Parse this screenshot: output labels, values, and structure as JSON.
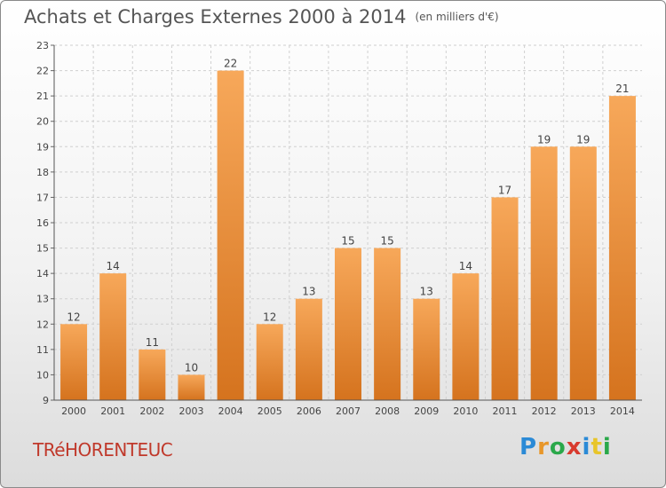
{
  "header": {
    "title": "Achats et Charges Externes 2000 à 2014",
    "unit": "(en milliers d'€)"
  },
  "footer": {
    "commune": "TRéHORENTEUC",
    "logo_letters": [
      {
        "char": "P",
        "color": "#2b8ad6"
      },
      {
        "char": "r",
        "color": "#e8972a"
      },
      {
        "char": "o",
        "color": "#2aa84a"
      },
      {
        "char": "x",
        "color": "#d83a2e"
      },
      {
        "char": "i",
        "color": "#2b8ad6"
      },
      {
        "char": "t",
        "color": "#e8c52a"
      },
      {
        "char": "i",
        "color": "#2aa84a"
      }
    ]
  },
  "chart_data": {
    "type": "bar",
    "categories": [
      "2000",
      "2001",
      "2002",
      "2003",
      "2004",
      "2005",
      "2006",
      "2007",
      "2008",
      "2009",
      "2010",
      "2011",
      "2012",
      "2013",
      "2014"
    ],
    "values": [
      12,
      14,
      11,
      10,
      22,
      12,
      13,
      15,
      15,
      13,
      14,
      17,
      19,
      19,
      21
    ],
    "ylim": [
      9,
      23
    ],
    "yticks": [
      9,
      10,
      11,
      12,
      13,
      14,
      15,
      16,
      17,
      18,
      19,
      20,
      21,
      22,
      23
    ],
    "grid": true,
    "bar_color_top": "#f7a85a",
    "bar_color_bottom": "#d5731e",
    "title": "Achats et Charges Externes 2000 à 2014",
    "xlabel": "",
    "ylabel": ""
  }
}
